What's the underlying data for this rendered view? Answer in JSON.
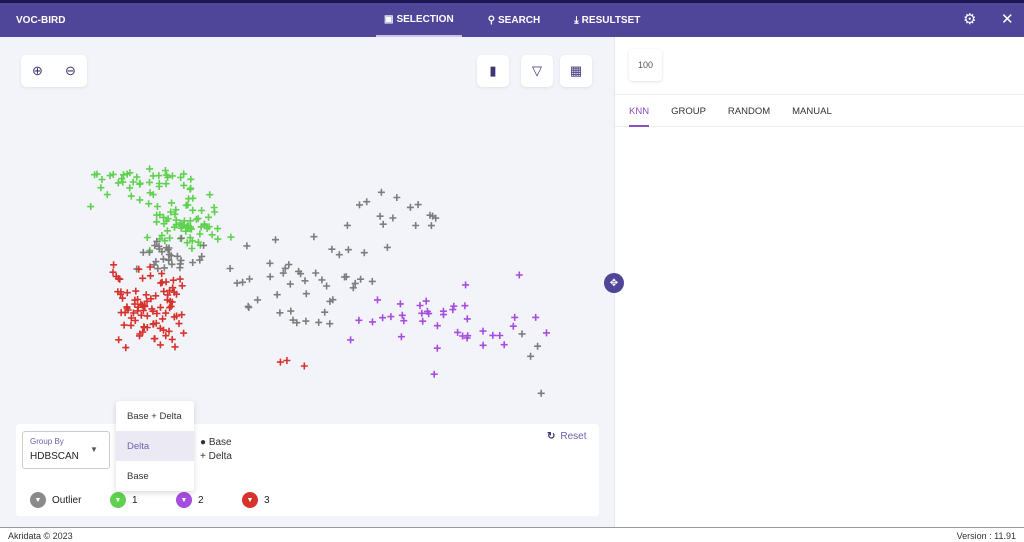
{
  "header": {
    "app_title": "VOC-BIRD",
    "nav": [
      {
        "label": "SELECTION",
        "icon": "image-icon",
        "active": true
      },
      {
        "label": "SEARCH",
        "icon": "search-icon"
      },
      {
        "label": "RESULTSET",
        "icon": "download-icon"
      }
    ]
  },
  "toolbar": {
    "zoom_in": "zoom-in-icon",
    "zoom_out": "zoom-out-icon",
    "chart": "bar-chart-icon",
    "filter": "filter-icon",
    "gallery": "gallery-icon"
  },
  "right": {
    "count": "100",
    "tabs": [
      {
        "label": "KNN",
        "active": true
      },
      {
        "label": "GROUP"
      },
      {
        "label": "RANDOM"
      },
      {
        "label": "MANUAL"
      }
    ]
  },
  "controls": {
    "group_by_label": "Group By",
    "group_by_value": "HDBSCAN",
    "base_label": "Base",
    "delta_label": "Delta",
    "reset_label": "Reset",
    "clusters": [
      {
        "label": "Outlier",
        "color": "#7d7d7d"
      },
      {
        "label": "1",
        "color": "#5fd14f"
      },
      {
        "label": "2",
        "color": "#a64de0"
      },
      {
        "label": "3",
        "color": "#d6332c"
      }
    ]
  },
  "dropdown": {
    "options": [
      "Base + Delta",
      "Delta",
      "Base"
    ],
    "selected": "Delta"
  },
  "footer": {
    "copyright": "Akridata © 2023",
    "version": "Version : 11.91"
  }
}
